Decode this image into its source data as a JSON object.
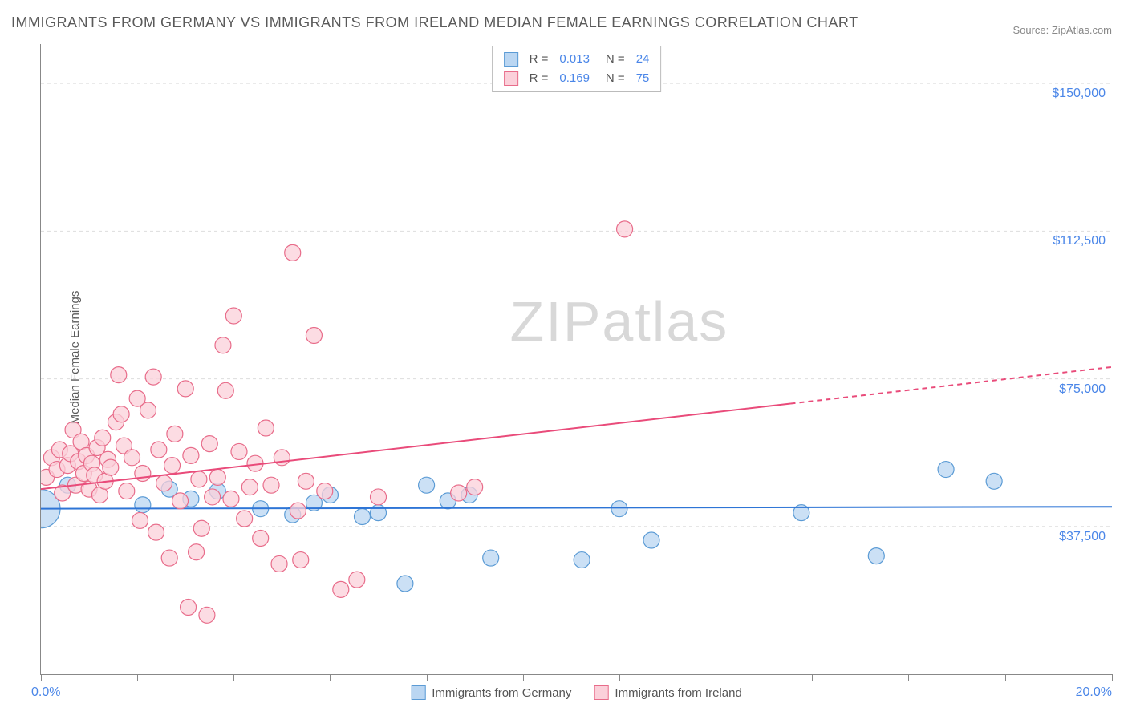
{
  "title": "IMMIGRANTS FROM GERMANY VS IMMIGRANTS FROM IRELAND MEDIAN FEMALE EARNINGS CORRELATION CHART",
  "source": "Source: ZipAtlas.com",
  "ylabel": "Median Female Earnings",
  "watermark_bold": "ZIP",
  "watermark_thin": "atlas",
  "chart": {
    "type": "scatter",
    "xlim": [
      0,
      20
    ],
    "ylim": [
      0,
      160000
    ],
    "x_start_label": "0.0%",
    "x_end_label": "20.0%",
    "x_ticks": [
      0,
      1.8,
      3.6,
      5.4,
      7.2,
      9,
      10.8,
      12.6,
      14.4,
      16.2,
      18,
      20
    ],
    "y_gridlines": [
      {
        "v": 37500,
        "label": "$37,500"
      },
      {
        "v": 75000,
        "label": "$75,000"
      },
      {
        "v": 112500,
        "label": "$112,500"
      },
      {
        "v": 150000,
        "label": "$150,000"
      }
    ],
    "background_color": "#ffffff",
    "grid_color": "#dddddd",
    "axis_color": "#888888",
    "tick_label_color": "#4a86e8",
    "series": [
      {
        "id": "germany",
        "label": "Immigrants from Germany",
        "marker_fill": "#bad6f2",
        "marker_stroke": "#5b9bd5",
        "marker_r": 10,
        "trend_color": "#2e75d6",
        "trend_width": 2,
        "trend_y0": 42000,
        "trend_y1": 42500,
        "solid_x_end": 20,
        "stats": {
          "R": "0.013",
          "N": "24"
        },
        "points": [
          {
            "x": 0.0,
            "y": 42000,
            "r": 24
          },
          {
            "x": 0.5,
            "y": 48000
          },
          {
            "x": 1.9,
            "y": 43000
          },
          {
            "x": 2.4,
            "y": 47000
          },
          {
            "x": 2.8,
            "y": 44500
          },
          {
            "x": 3.3,
            "y": 46500
          },
          {
            "x": 4.1,
            "y": 42000
          },
          {
            "x": 4.7,
            "y": 40500
          },
          {
            "x": 5.1,
            "y": 43500
          },
          {
            "x": 5.4,
            "y": 45500
          },
          {
            "x": 6.0,
            "y": 40000
          },
          {
            "x": 6.3,
            "y": 41000
          },
          {
            "x": 6.8,
            "y": 23000
          },
          {
            "x": 7.2,
            "y": 48000
          },
          {
            "x": 7.6,
            "y": 44000
          },
          {
            "x": 8.0,
            "y": 45500
          },
          {
            "x": 8.4,
            "y": 29500
          },
          {
            "x": 10.1,
            "y": 29000
          },
          {
            "x": 10.8,
            "y": 42000
          },
          {
            "x": 11.4,
            "y": 34000
          },
          {
            "x": 14.2,
            "y": 41000
          },
          {
            "x": 15.6,
            "y": 30000
          },
          {
            "x": 16.9,
            "y": 52000
          },
          {
            "x": 17.8,
            "y": 49000
          }
        ]
      },
      {
        "id": "ireland",
        "label": "Immigrants from Ireland",
        "marker_fill": "#fbd0da",
        "marker_stroke": "#e86c8a",
        "marker_r": 10,
        "trend_color": "#e94b7a",
        "trend_width": 2,
        "trend_y0": 47000,
        "trend_y1": 78000,
        "solid_x_end": 14,
        "stats": {
          "R": "0.169",
          "N": "75"
        },
        "points": [
          {
            "x": 0.1,
            "y": 50000
          },
          {
            "x": 0.2,
            "y": 55000
          },
          {
            "x": 0.3,
            "y": 52000
          },
          {
            "x": 0.35,
            "y": 57000
          },
          {
            "x": 0.4,
            "y": 46000
          },
          {
            "x": 0.5,
            "y": 53000
          },
          {
            "x": 0.55,
            "y": 56000
          },
          {
            "x": 0.6,
            "y": 62000
          },
          {
            "x": 0.65,
            "y": 48000
          },
          {
            "x": 0.7,
            "y": 54000
          },
          {
            "x": 0.75,
            "y": 59000
          },
          {
            "x": 0.8,
            "y": 51000
          },
          {
            "x": 0.85,
            "y": 55500
          },
          {
            "x": 0.9,
            "y": 47000
          },
          {
            "x": 0.95,
            "y": 53500
          },
          {
            "x": 1.0,
            "y": 50500
          },
          {
            "x": 1.05,
            "y": 57500
          },
          {
            "x": 1.1,
            "y": 45500
          },
          {
            "x": 1.15,
            "y": 60000
          },
          {
            "x": 1.2,
            "y": 49000
          },
          {
            "x": 1.25,
            "y": 54500
          },
          {
            "x": 1.3,
            "y": 52500
          },
          {
            "x": 1.4,
            "y": 64000
          },
          {
            "x": 1.45,
            "y": 76000
          },
          {
            "x": 1.5,
            "y": 66000
          },
          {
            "x": 1.55,
            "y": 58000
          },
          {
            "x": 1.6,
            "y": 46500
          },
          {
            "x": 1.7,
            "y": 55000
          },
          {
            "x": 1.8,
            "y": 70000
          },
          {
            "x": 1.85,
            "y": 39000
          },
          {
            "x": 1.9,
            "y": 51000
          },
          {
            "x": 2.0,
            "y": 67000
          },
          {
            "x": 2.1,
            "y": 75500
          },
          {
            "x": 2.15,
            "y": 36000
          },
          {
            "x": 2.2,
            "y": 57000
          },
          {
            "x": 2.3,
            "y": 48500
          },
          {
            "x": 2.4,
            "y": 29500
          },
          {
            "x": 2.45,
            "y": 53000
          },
          {
            "x": 2.5,
            "y": 61000
          },
          {
            "x": 2.6,
            "y": 44000
          },
          {
            "x": 2.7,
            "y": 72500
          },
          {
            "x": 2.75,
            "y": 17000
          },
          {
            "x": 2.8,
            "y": 55500
          },
          {
            "x": 2.9,
            "y": 31000
          },
          {
            "x": 2.95,
            "y": 49500
          },
          {
            "x": 3.0,
            "y": 37000
          },
          {
            "x": 3.1,
            "y": 15000
          },
          {
            "x": 3.15,
            "y": 58500
          },
          {
            "x": 3.2,
            "y": 45000
          },
          {
            "x": 3.3,
            "y": 50000
          },
          {
            "x": 3.4,
            "y": 83500
          },
          {
            "x": 3.45,
            "y": 72000
          },
          {
            "x": 3.55,
            "y": 44500
          },
          {
            "x": 3.6,
            "y": 91000
          },
          {
            "x": 3.7,
            "y": 56500
          },
          {
            "x": 3.8,
            "y": 39500
          },
          {
            "x": 3.9,
            "y": 47500
          },
          {
            "x": 4.0,
            "y": 53500
          },
          {
            "x": 4.1,
            "y": 34500
          },
          {
            "x": 4.2,
            "y": 62500
          },
          {
            "x": 4.3,
            "y": 48000
          },
          {
            "x": 4.45,
            "y": 28000
          },
          {
            "x": 4.5,
            "y": 55000
          },
          {
            "x": 4.7,
            "y": 107000
          },
          {
            "x": 4.8,
            "y": 41500
          },
          {
            "x": 4.85,
            "y": 29000
          },
          {
            "x": 4.95,
            "y": 49000
          },
          {
            "x": 5.1,
            "y": 86000
          },
          {
            "x": 5.3,
            "y": 46500
          },
          {
            "x": 5.6,
            "y": 21500
          },
          {
            "x": 5.9,
            "y": 24000
          },
          {
            "x": 6.3,
            "y": 45000
          },
          {
            "x": 7.8,
            "y": 46000
          },
          {
            "x": 8.1,
            "y": 47500
          },
          {
            "x": 10.9,
            "y": 113000
          }
        ]
      }
    ],
    "legend_bottom": [
      {
        "label": "Immigrants from Germany",
        "fill": "#bad6f2",
        "stroke": "#5b9bd5"
      },
      {
        "label": "Immigrants from Ireland",
        "fill": "#fbd0da",
        "stroke": "#e86c8a"
      }
    ]
  }
}
